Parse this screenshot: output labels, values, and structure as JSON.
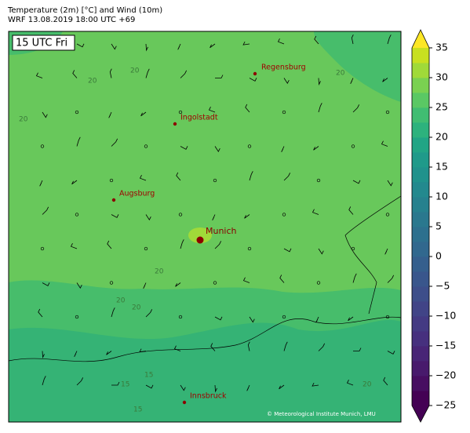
{
  "header": {
    "title": "Temperature (2m) [°C] and Wind (10m)",
    "subtitle": "WRF 13.08.2019 18:00 UTC +69"
  },
  "map": {
    "time_label": "15 UTC Fri",
    "cities": [
      "Regensburg",
      "Ingolstadt",
      "Augsburg",
      "Munich",
      "Innsbruck"
    ],
    "contour_labels": [
      "20",
      "20",
      "20",
      "20",
      "20",
      "20",
      "20",
      "15",
      "15",
      "15",
      "20"
    ],
    "copyright": "© Meteorological Institute Munich, LMU"
  },
  "colorbar": {
    "lim": [
      -25,
      35
    ],
    "ticks": [
      -25,
      -20,
      -15,
      -10,
      -5,
      0,
      5,
      10,
      15,
      20,
      25,
      30,
      35
    ],
    "tick_labels": [
      "−25",
      "−20",
      "−15",
      "−10",
      "−5",
      "0",
      "5",
      "10",
      "15",
      "20",
      "25",
      "30",
      "35"
    ],
    "colors": [
      "#440154",
      "#470e61",
      "#481a6c",
      "#482576",
      "#46307e",
      "#443a83",
      "#414487",
      "#3d4e8a",
      "#39568c",
      "#355f8d",
      "#31688e",
      "#2d708e",
      "#2a788e",
      "#26818e",
      "#23898e",
      "#20928c",
      "#1f9a8a",
      "#21a585",
      "#2db27d",
      "#40bd72",
      "#5ac864",
      "#7ad151",
      "#a0da39",
      "#c8e020"
    ],
    "over_color": "#fde725",
    "under_color": "#440154"
  }
}
